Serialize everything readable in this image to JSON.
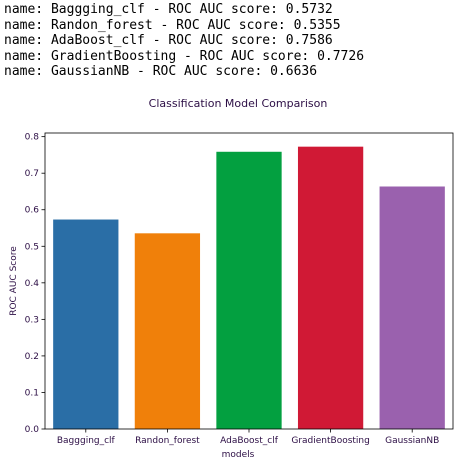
{
  "log_lines": [
    "name: Baggging_clf - ROC AUC score: 0.5732",
    "name: Randon_forest - ROC AUC score: 0.5355",
    "name: AdaBoost_clf - ROC AUC score: 0.7586",
    "name: GradientBoosting - ROC AUC score: 0.7726",
    "name: GaussianNB - ROC AUC score: 0.6636"
  ],
  "chart_data": {
    "type": "bar",
    "title": "Classification Model Comparison",
    "xlabel": "models",
    "ylabel": "ROC AUC Score",
    "categories": [
      "Baggging_clf",
      "Randon_forest",
      "AdaBoost_clf",
      "GradientBoosting",
      "GaussianNB"
    ],
    "values": [
      0.5732,
      0.5355,
      0.7586,
      0.7726,
      0.6636
    ],
    "colors": [
      "#2a6ea6",
      "#f0800a",
      "#03a040",
      "#d01935",
      "#9a61ae"
    ],
    "ylim": [
      0,
      0.81
    ],
    "yticks": [
      0.0,
      0.1,
      0.2,
      0.3,
      0.4,
      0.5,
      0.6,
      0.7,
      0.8
    ],
    "ytick_labels": [
      "0.0",
      "0.1",
      "0.2",
      "0.3",
      "0.4",
      "0.5",
      "0.6",
      "0.7",
      "0.8"
    ],
    "grid": false,
    "text_color": "#2c0e45"
  }
}
